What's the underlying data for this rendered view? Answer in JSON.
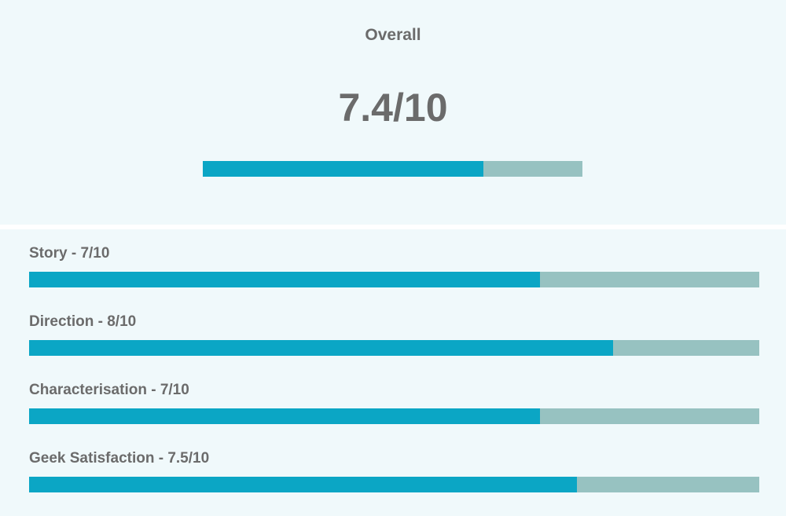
{
  "overall": {
    "label": "Overall",
    "score_text": "7.4/10",
    "fraction": 0.74
  },
  "criteria": [
    {
      "label": "Story - 7/10",
      "fraction": 0.7
    },
    {
      "label": "Direction - 8/10",
      "fraction": 0.8
    },
    {
      "label": "Characterisation - 7/10",
      "fraction": 0.7
    },
    {
      "label": "Geek Satisfaction - 7.5/10",
      "fraction": 0.75
    }
  ],
  "colors": {
    "fill": "#0ba6c5",
    "track": "#97c2c1",
    "text": "#6b6b6b",
    "background": "#f0f9fb"
  }
}
